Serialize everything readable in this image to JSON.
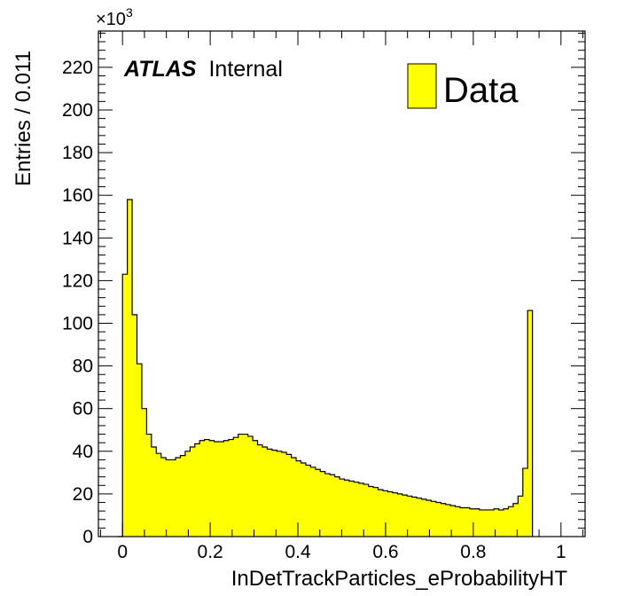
{
  "chart_data": {
    "type": "bar",
    "style": "filled-step-histogram",
    "xlabel": "InDetTrackParticles_eProbabilityHT",
    "ylabel": "Entries / 0.011",
    "y_multiplier_label": "×10",
    "y_multiplier_exponent": "3",
    "xlim": [
      -0.055,
      1.055
    ],
    "ylim": [
      0,
      237
    ],
    "x_ticks": [
      0,
      0.2,
      0.4,
      0.6,
      0.8,
      1
    ],
    "x_tick_labels": [
      "0",
      "0.2",
      "0.4",
      "0.6",
      "0.8",
      "1"
    ],
    "y_ticks": [
      0,
      20,
      40,
      60,
      80,
      100,
      120,
      140,
      160,
      180,
      200,
      220
    ],
    "y_tick_labels": [
      "0",
      "20",
      "40",
      "60",
      "80",
      "100",
      "120",
      "140",
      "160",
      "180",
      "200",
      "220"
    ],
    "bin_width": 0.011,
    "x_start": -0.011,
    "fill_color": "#ffff00",
    "line_color": "#000000",
    "experiment_label": {
      "bold": "ATLAS",
      "normal": "Internal"
    },
    "legend": {
      "label": "Data",
      "position": "top-right"
    },
    "series": [
      {
        "name": "Data",
        "values": [
          0,
          123,
          158,
          104,
          81,
          60,
          48,
          42,
          39,
          37,
          36,
          36,
          37,
          38,
          40,
          42,
          43.5,
          45,
          45.5,
          45,
          44.5,
          44.5,
          45,
          45.5,
          46.5,
          48,
          48,
          47,
          45,
          43,
          42,
          41,
          40.5,
          40,
          39.5,
          38.5,
          37,
          35.5,
          34.5,
          33.5,
          32.5,
          31.5,
          30.5,
          29.5,
          29,
          28,
          27,
          26.5,
          26,
          25.5,
          25,
          24.5,
          23.5,
          23,
          22,
          21.5,
          21,
          20.5,
          20,
          19.5,
          19,
          18.5,
          18,
          17.5,
          17,
          16.5,
          16,
          15.5,
          15,
          14.5,
          14,
          13.5,
          13.5,
          13,
          13,
          12.5,
          12.5,
          12.5,
          13,
          12.5,
          13,
          14,
          15.5,
          19,
          32,
          106
        ]
      }
    ]
  }
}
